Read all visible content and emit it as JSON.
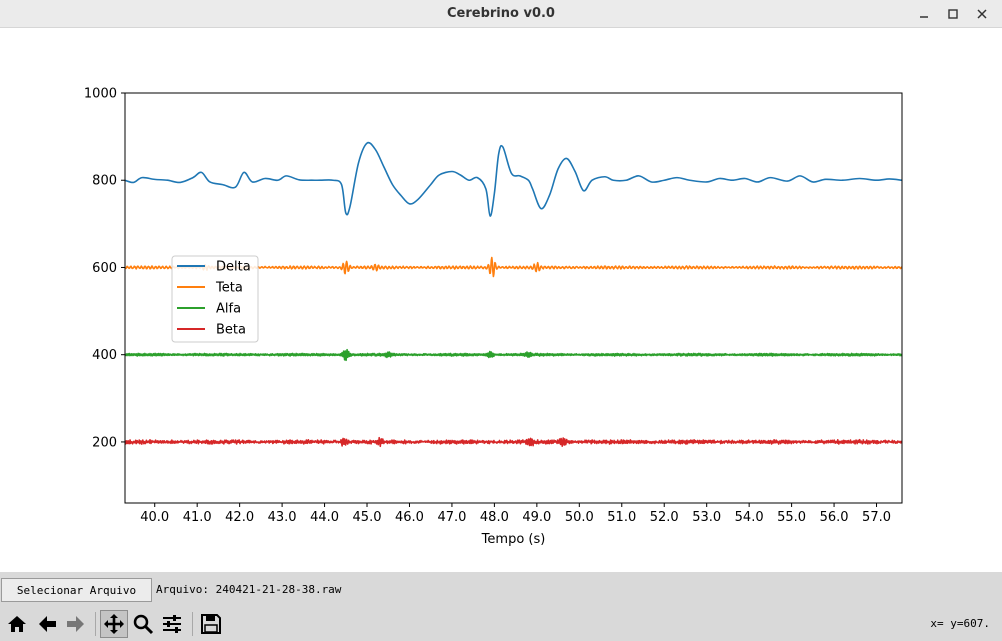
{
  "window": {
    "title": "Cerebrino v0.0",
    "controls": [
      "minimize-icon",
      "maximize-icon",
      "close-icon"
    ]
  },
  "chart_data": {
    "type": "line",
    "xlabel": "Tempo (s)",
    "ylabel": "",
    "xlim": [
      39.3,
      57.6
    ],
    "ylim": [
      60,
      1000
    ],
    "x_ticks": [
      40.0,
      41.0,
      42.0,
      43.0,
      44.0,
      45.0,
      46.0,
      47.0,
      48.0,
      49.0,
      50.0,
      51.0,
      52.0,
      53.0,
      54.0,
      55.0,
      56.0,
      57.0
    ],
    "x_tick_labels": [
      "40.0",
      "41.0",
      "42.0",
      "43.0",
      "44.0",
      "45.0",
      "46.0",
      "47.0",
      "48.0",
      "49.0",
      "50.0",
      "51.0",
      "52.0",
      "53.0",
      "54.0",
      "55.0",
      "56.0",
      "57.0"
    ],
    "y_ticks": [
      200,
      400,
      600,
      800,
      1000
    ],
    "y_tick_labels": [
      "200",
      "400",
      "600",
      "800",
      "1000"
    ],
    "grid": false,
    "legend_placement": "center-left",
    "series": [
      {
        "name": "Delta",
        "color": "#1f77b4",
        "points": [
          [
            39.3,
            800
          ],
          [
            39.5,
            795
          ],
          [
            39.7,
            806
          ],
          [
            40.0,
            802
          ],
          [
            40.3,
            800
          ],
          [
            40.6,
            795
          ],
          [
            40.9,
            806
          ],
          [
            41.1,
            818
          ],
          [
            41.3,
            796
          ],
          [
            41.6,
            790
          ],
          [
            41.9,
            784
          ],
          [
            42.1,
            818
          ],
          [
            42.3,
            796
          ],
          [
            42.6,
            804
          ],
          [
            42.9,
            800
          ],
          [
            43.1,
            810
          ],
          [
            43.4,
            801
          ],
          [
            43.7,
            800
          ],
          [
            43.9,
            800
          ],
          [
            44.2,
            800
          ],
          [
            44.4,
            790
          ],
          [
            44.5,
            725
          ],
          [
            44.6,
            740
          ],
          [
            44.8,
            840
          ],
          [
            45.0,
            885
          ],
          [
            45.2,
            870
          ],
          [
            45.4,
            830
          ],
          [
            45.6,
            790
          ],
          [
            45.8,
            765
          ],
          [
            46.0,
            746
          ],
          [
            46.2,
            756
          ],
          [
            46.5,
            790
          ],
          [
            46.7,
            812
          ],
          [
            47.0,
            820
          ],
          [
            47.2,
            812
          ],
          [
            47.4,
            800
          ],
          [
            47.6,
            806
          ],
          [
            47.8,
            780
          ],
          [
            47.9,
            718
          ],
          [
            48.0,
            770
          ],
          [
            48.1,
            860
          ],
          [
            48.2,
            876
          ],
          [
            48.4,
            816
          ],
          [
            48.6,
            810
          ],
          [
            48.8,
            800
          ],
          [
            48.9,
            780
          ],
          [
            49.1,
            735
          ],
          [
            49.3,
            766
          ],
          [
            49.5,
            826
          ],
          [
            49.7,
            850
          ],
          [
            49.9,
            820
          ],
          [
            50.1,
            776
          ],
          [
            50.3,
            800
          ],
          [
            50.6,
            808
          ],
          [
            50.8,
            800
          ],
          [
            51.1,
            800
          ],
          [
            51.4,
            810
          ],
          [
            51.7,
            796
          ],
          [
            52.0,
            800
          ],
          [
            52.3,
            806
          ],
          [
            52.6,
            800
          ],
          [
            53.0,
            796
          ],
          [
            53.3,
            804
          ],
          [
            53.6,
            800
          ],
          [
            53.9,
            804
          ],
          [
            54.2,
            796
          ],
          [
            54.5,
            806
          ],
          [
            54.9,
            798
          ],
          [
            55.2,
            810
          ],
          [
            55.5,
            796
          ],
          [
            55.8,
            802
          ],
          [
            56.2,
            800
          ],
          [
            56.6,
            804
          ],
          [
            57.0,
            800
          ],
          [
            57.3,
            803
          ],
          [
            57.6,
            800
          ]
        ]
      },
      {
        "name": "Teta",
        "color": "#ff7f0e",
        "baseline": 600,
        "bursts": [
          [
            44.5,
            14
          ],
          [
            47.95,
            22
          ],
          [
            49.0,
            8
          ],
          [
            41.2,
            4
          ],
          [
            45.2,
            5
          ]
        ]
      },
      {
        "name": "Alfa",
        "color": "#2ca02c",
        "baseline": 400,
        "bursts": [
          [
            44.5,
            12
          ],
          [
            47.9,
            6
          ],
          [
            45.5,
            4
          ],
          [
            48.8,
            4
          ]
        ]
      },
      {
        "name": "Beta",
        "color": "#d62728",
        "baseline": 200,
        "bursts": [
          [
            44.45,
            7
          ],
          [
            48.85,
            7
          ],
          [
            49.6,
            8
          ],
          [
            45.3,
            5
          ]
        ]
      }
    ]
  },
  "file_bar": {
    "button_label": "Selecionar Arquivo",
    "file_label": "Arquivo: 240421-21-28-38.raw"
  },
  "toolbar": {
    "icons": [
      "home-icon",
      "back-icon",
      "forward-icon",
      "pan-icon",
      "zoom-icon",
      "configure-subplots-icon",
      "save-icon"
    ],
    "coordinate_readout": "x= y=607."
  }
}
